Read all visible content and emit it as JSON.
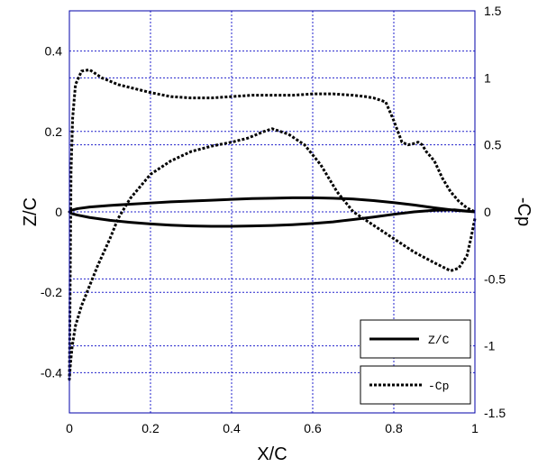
{
  "chart_data": {
    "type": "line",
    "xlabel": "X/C",
    "ylabel_left": "Z/C",
    "ylabel_right": "-Cp",
    "xlim": [
      0,
      1
    ],
    "ylim_left": [
      -0.5,
      0.5
    ],
    "ylim_right": [
      -1.5,
      1.5
    ],
    "xticks": [
      "0",
      "0.2",
      "0.4",
      "0.6",
      "0.8",
      "1"
    ],
    "yticks_left": [
      "-0.4",
      "-0.2",
      "0",
      "0.2",
      "0.4"
    ],
    "yticks_right": [
      "-1.5",
      "-1",
      "-0.5",
      "0",
      "0.5",
      "1",
      "1.5"
    ],
    "grid": true,
    "legend_position": "bottom-right",
    "series": [
      {
        "name": "Z/C",
        "axis": "left",
        "style": "solid",
        "color": "#000000",
        "points": [
          [
            1.0,
            0.0
          ],
          [
            0.95,
            0.004
          ],
          [
            0.9,
            0.01
          ],
          [
            0.85,
            0.017
          ],
          [
            0.8,
            0.023
          ],
          [
            0.75,
            0.028
          ],
          [
            0.7,
            0.032
          ],
          [
            0.65,
            0.034
          ],
          [
            0.6,
            0.035
          ],
          [
            0.55,
            0.035
          ],
          [
            0.5,
            0.034
          ],
          [
            0.45,
            0.033
          ],
          [
            0.4,
            0.031
          ],
          [
            0.35,
            0.029
          ],
          [
            0.3,
            0.027
          ],
          [
            0.25,
            0.025
          ],
          [
            0.2,
            0.022
          ],
          [
            0.15,
            0.019
          ],
          [
            0.1,
            0.016
          ],
          [
            0.05,
            0.012
          ],
          [
            0.02,
            0.008
          ],
          [
            0.005,
            0.004
          ],
          [
            0.0,
            0.0
          ],
          [
            0.005,
            -0.004
          ],
          [
            0.02,
            -0.008
          ],
          [
            0.05,
            -0.014
          ],
          [
            0.1,
            -0.021
          ],
          [
            0.15,
            -0.026
          ],
          [
            0.2,
            -0.03
          ],
          [
            0.25,
            -0.033
          ],
          [
            0.3,
            -0.035
          ],
          [
            0.35,
            -0.036
          ],
          [
            0.4,
            -0.036
          ],
          [
            0.45,
            -0.035
          ],
          [
            0.5,
            -0.034
          ],
          [
            0.55,
            -0.032
          ],
          [
            0.6,
            -0.029
          ],
          [
            0.65,
            -0.025
          ],
          [
            0.7,
            -0.019
          ],
          [
            0.75,
            -0.013
          ],
          [
            0.8,
            -0.006
          ],
          [
            0.85,
            0.0
          ],
          [
            0.9,
            0.004
          ],
          [
            0.95,
            0.005
          ],
          [
            1.0,
            0.0
          ]
        ]
      },
      {
        "name": "-Cp",
        "axis": "right",
        "style": "dashed",
        "color": "#000000",
        "points": [
          [
            1.0,
            -0.05
          ],
          [
            0.99,
            -0.2
          ],
          [
            0.98,
            -0.33
          ],
          [
            0.96,
            -0.42
          ],
          [
            0.94,
            -0.44
          ],
          [
            0.9,
            -0.38
          ],
          [
            0.85,
            -0.3
          ],
          [
            0.8,
            -0.2
          ],
          [
            0.75,
            -0.1
          ],
          [
            0.7,
            0.0
          ],
          [
            0.66,
            0.15
          ],
          [
            0.62,
            0.35
          ],
          [
            0.58,
            0.5
          ],
          [
            0.54,
            0.58
          ],
          [
            0.5,
            0.62
          ],
          [
            0.48,
            0.6
          ],
          [
            0.44,
            0.55
          ],
          [
            0.4,
            0.52
          ],
          [
            0.35,
            0.49
          ],
          [
            0.3,
            0.45
          ],
          [
            0.25,
            0.38
          ],
          [
            0.2,
            0.28
          ],
          [
            0.15,
            0.1
          ],
          [
            0.12,
            -0.05
          ],
          [
            0.1,
            -0.2
          ],
          [
            0.07,
            -0.4
          ],
          [
            0.05,
            -0.55
          ],
          [
            0.03,
            -0.7
          ],
          [
            0.015,
            -0.85
          ],
          [
            0.007,
            -1.0
          ],
          [
            0.003,
            -1.12
          ],
          [
            0.001,
            -1.2
          ],
          [
            0.0,
            -1.25
          ],
          [
            0.002,
            -0.5
          ],
          [
            0.004,
            0.3
          ],
          [
            0.008,
            0.7
          ],
          [
            0.015,
            0.95
          ],
          [
            0.03,
            1.05
          ],
          [
            0.05,
            1.06
          ],
          [
            0.08,
            1.0
          ],
          [
            0.12,
            0.95
          ],
          [
            0.16,
            0.92
          ],
          [
            0.2,
            0.89
          ],
          [
            0.25,
            0.86
          ],
          [
            0.3,
            0.85
          ],
          [
            0.35,
            0.85
          ],
          [
            0.4,
            0.86
          ],
          [
            0.45,
            0.87
          ],
          [
            0.5,
            0.87
          ],
          [
            0.55,
            0.87
          ],
          [
            0.6,
            0.88
          ],
          [
            0.65,
            0.88
          ],
          [
            0.7,
            0.87
          ],
          [
            0.73,
            0.86
          ],
          [
            0.75,
            0.85
          ],
          [
            0.78,
            0.82
          ],
          [
            0.79,
            0.75
          ],
          [
            0.8,
            0.68
          ],
          [
            0.81,
            0.6
          ],
          [
            0.82,
            0.52
          ],
          [
            0.835,
            0.5
          ],
          [
            0.85,
            0.51
          ],
          [
            0.86,
            0.52
          ],
          [
            0.87,
            0.5
          ],
          [
            0.88,
            0.45
          ],
          [
            0.9,
            0.38
          ],
          [
            0.92,
            0.25
          ],
          [
            0.94,
            0.15
          ],
          [
            0.96,
            0.08
          ],
          [
            0.98,
            0.03
          ],
          [
            1.0,
            0.0
          ]
        ]
      }
    ]
  }
}
